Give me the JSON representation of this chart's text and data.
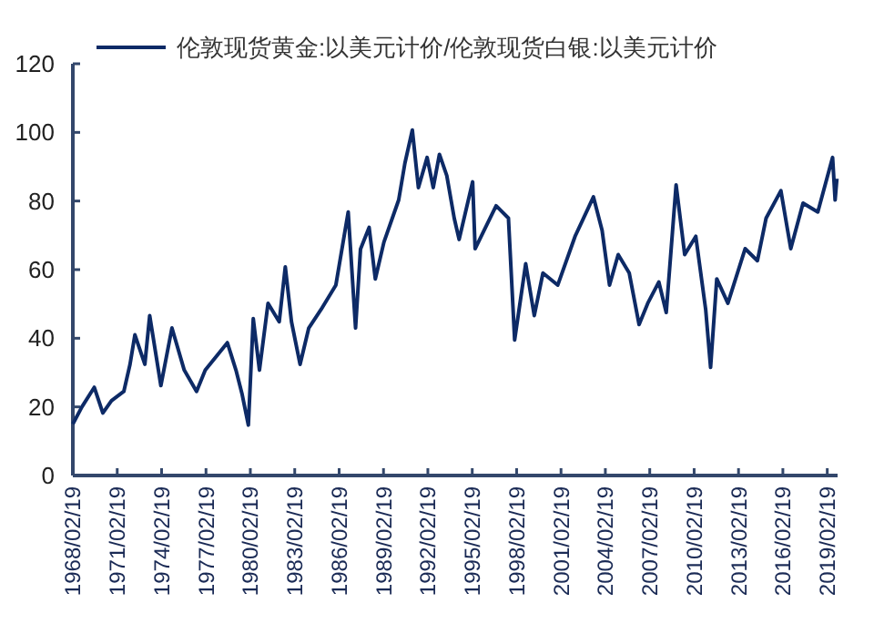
{
  "chart_data": {
    "type": "line",
    "legend": "top",
    "grid": false,
    "marker": "none",
    "line_style": "solid",
    "x": [
      "1968-02-19",
      "1968-10",
      "1969-08",
      "1970-03",
      "1970-10",
      "1971-08",
      "1972-01",
      "1972-05",
      "1973-01",
      "1973-05",
      "1974-02",
      "1974-11",
      "1975-09",
      "1976-07",
      "1977-02",
      "1978-08",
      "1979-03",
      "1979-08",
      "1980-01",
      "1980-05",
      "1980-10",
      "1981-05",
      "1982-02",
      "1982-07",
      "1982-12",
      "1983-07",
      "1984-02",
      "1984-12",
      "1985-12",
      "1986-10",
      "1987-04",
      "1987-08",
      "1988-03",
      "1988-08",
      "1989-03",
      "1990-03",
      "1990-08",
      "1991-02",
      "1991-07",
      "1992-02",
      "1992-07",
      "1992-12",
      "1993-06",
      "1993-12",
      "1994-04",
      "1995-03",
      "1995-05",
      "1996-10",
      "1997-08",
      "1998-01",
      "1998-10",
      "1999-05",
      "1999-12",
      "2000-12",
      "2002-02",
      "2003-05",
      "2003-12",
      "2004-06",
      "2005-01",
      "2005-10",
      "2006-06",
      "2007-01",
      "2007-10",
      "2008-04",
      "2008-12",
      "2009-07",
      "2010-04",
      "2010-12",
      "2011-04",
      "2011-09",
      "2012-06",
      "2013-08",
      "2014-06",
      "2015-01",
      "2016-01",
      "2016-09",
      "2017-07",
      "2018-07",
      "2019-07",
      "2019-09",
      "2019-10-15"
    ],
    "xlim": [
      "1968-02-19",
      "2019-11-01"
    ],
    "xticks": [
      {
        "value": "1968-02-19",
        "label": "1968/02/19"
      },
      {
        "value": "1971-02-19",
        "label": "1971/02/19"
      },
      {
        "value": "1974-02-19",
        "label": "1974/02/19"
      },
      {
        "value": "1977-02-19",
        "label": "1977/02/19"
      },
      {
        "value": "1980-02-19",
        "label": "1980/02/19"
      },
      {
        "value": "1983-02-19",
        "label": "1983/02/19"
      },
      {
        "value": "1986-02-19",
        "label": "1986/02/19"
      },
      {
        "value": "1989-02-19",
        "label": "1989/02/19"
      },
      {
        "value": "1992-02-19",
        "label": "1992/02/19"
      },
      {
        "value": "1995-02-19",
        "label": "1995/02/19"
      },
      {
        "value": "1998-02-19",
        "label": "1998/02/19"
      },
      {
        "value": "2001-02-19",
        "label": "2001/02/19"
      },
      {
        "value": "2004-02-19",
        "label": "2004/02/19"
      },
      {
        "value": "2007-02-19",
        "label": "2007/02/19"
      },
      {
        "value": "2010-02-19",
        "label": "2010/02/19"
      },
      {
        "value": "2013-02-19",
        "label": "2013/02/19"
      },
      {
        "value": "2016-02-19",
        "label": "2016/02/19"
      },
      {
        "value": "2019-02-19",
        "label": "2019/02/19"
      }
    ],
    "ylim": [
      0,
      120
    ],
    "yticks": [
      0,
      20,
      40,
      60,
      80,
      100,
      120
    ],
    "series": [
      {
        "name": "伦敦现货黄金:以美元计价/伦敦现货白银:以美元计价",
        "color": "#0d2a66",
        "values": [
          15,
          20,
          25.7,
          18.2,
          21.8,
          24.5,
          32.4,
          41,
          32.4,
          46.6,
          26.2,
          43,
          30.7,
          24.5,
          30.7,
          38.7,
          30.7,
          23.6,
          14.7,
          45.7,
          30.7,
          50.2,
          44.8,
          60.8,
          44.8,
          32.4,
          43,
          48.4,
          55.5,
          76.8,
          43,
          66,
          72.3,
          57.3,
          68,
          80.3,
          91,
          100.7,
          83.9,
          92.7,
          83.9,
          93.6,
          87.4,
          75,
          68.8,
          85.6,
          66.1,
          78.6,
          75,
          39.5,
          61.7,
          46.6,
          59,
          55.5,
          69.7,
          81.2,
          71.4,
          55.5,
          64.4,
          59,
          44,
          50.2,
          56.4,
          47.5,
          84.7,
          64.4,
          69.7,
          48.4,
          31.5,
          57.3,
          50.2,
          66.1,
          62.6,
          75,
          83,
          66.1,
          79.4,
          76.8,
          92.7,
          80.3,
          86.5
        ]
      }
    ]
  }
}
